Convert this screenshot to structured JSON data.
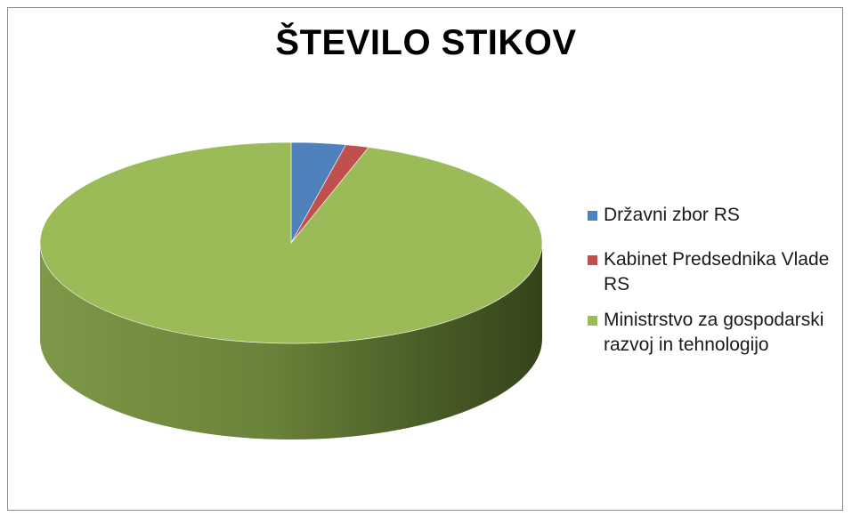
{
  "chart_data": {
    "type": "pie",
    "title": "ŠTEVILO STIKOV",
    "categories": [
      "Državni zbor RS",
      "Kabinet Predsednika Vlade RS",
      "Ministrstvo za gospodarski razvoj in tehnologijo"
    ],
    "values": [
      3.5,
      1.5,
      95
    ],
    "colors": [
      "#4f81bd",
      "#c0504d",
      "#9bbb59"
    ],
    "side_colors": [
      "#2f5597",
      "#8b2b29",
      "#6b8a3a"
    ],
    "legend_position": "right",
    "style": "3d"
  }
}
